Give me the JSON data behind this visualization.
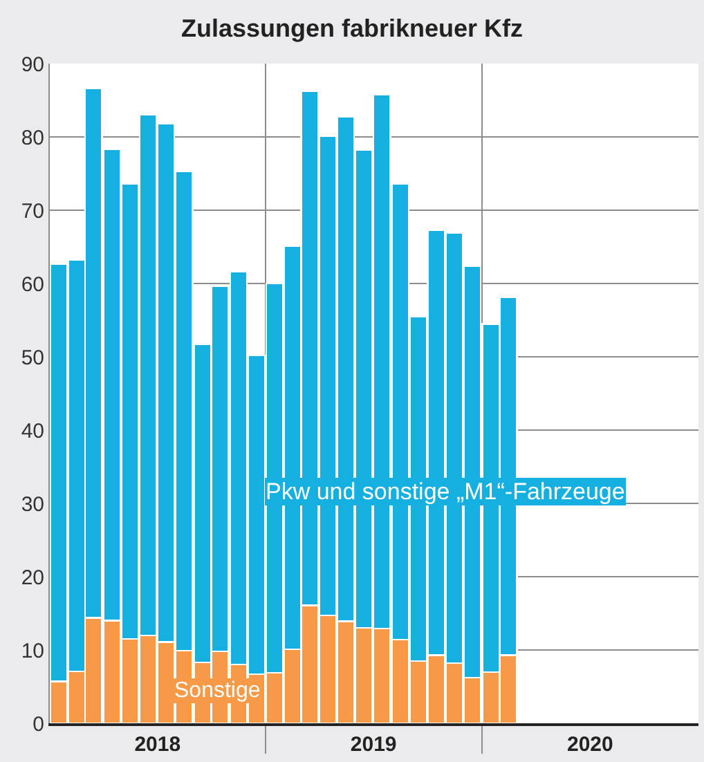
{
  "chart_data": {
    "type": "bar",
    "title": "Zulassungen fabrikneuer Kfz",
    "stacked": true,
    "x": [
      "2018-01-16",
      "2018-02-15",
      "2018-03-16",
      "2018-04-16",
      "2018-05-16",
      "2018-06-16",
      "2018-07-16",
      "2018-08-16",
      "2018-09-16",
      "2018-10-16",
      "2018-11-16",
      "2018-12-16",
      "2019-01-16",
      "2019-02-15",
      "2019-03-16",
      "2019-04-16",
      "2019-05-16",
      "2019-06-16",
      "2019-07-16",
      "2019-08-16",
      "2019-09-16",
      "2019-10-16",
      "2019-11-16",
      "2019-12-16",
      "2020-01-16",
      "2020-02-15"
    ],
    "series": [
      {
        "name": "Sonstige",
        "color": "#f79a48",
        "values": [
          5.7,
          7.1,
          14.4,
          14.0,
          11.5,
          12.0,
          11.1,
          9.9,
          8.3,
          9.8,
          8.0,
          6.7,
          6.9,
          10.1,
          16.1,
          14.7,
          13.9,
          13.0,
          12.9,
          11.4,
          8.5,
          9.3,
          8.2,
          6.2,
          7.0,
          9.3
        ]
      },
      {
        "name": "Pkw und sonstige „M1“-Fahrzeuge",
        "color": "#16b0e0",
        "values": [
          57.0,
          56.1,
          72.2,
          64.3,
          62.1,
          71.0,
          70.7,
          65.4,
          43.4,
          49.8,
          53.6,
          43.5,
          53.1,
          55.0,
          70.1,
          65.4,
          68.9,
          65.2,
          72.9,
          62.2,
          47.0,
          58.0,
          58.7,
          56.2,
          47.5,
          48.8
        ]
      }
    ],
    "xlim": [
      "2018-01-01",
      "2021-01-01"
    ],
    "xticks": [
      {
        "value": "2019-01-01",
        "label": null
      },
      {
        "value": "2020-01-01",
        "label": null
      },
      {
        "value": "2018-07-02",
        "label": "2018"
      },
      {
        "value": "2019-07-02",
        "label": "2019"
      },
      {
        "value": "2020-07-02",
        "label": "2020"
      }
    ],
    "ylim": [
      0,
      90
    ],
    "yticks": [
      0,
      10,
      20,
      30,
      40,
      50,
      60,
      70,
      80,
      90
    ],
    "grid": true,
    "legend": false
  }
}
